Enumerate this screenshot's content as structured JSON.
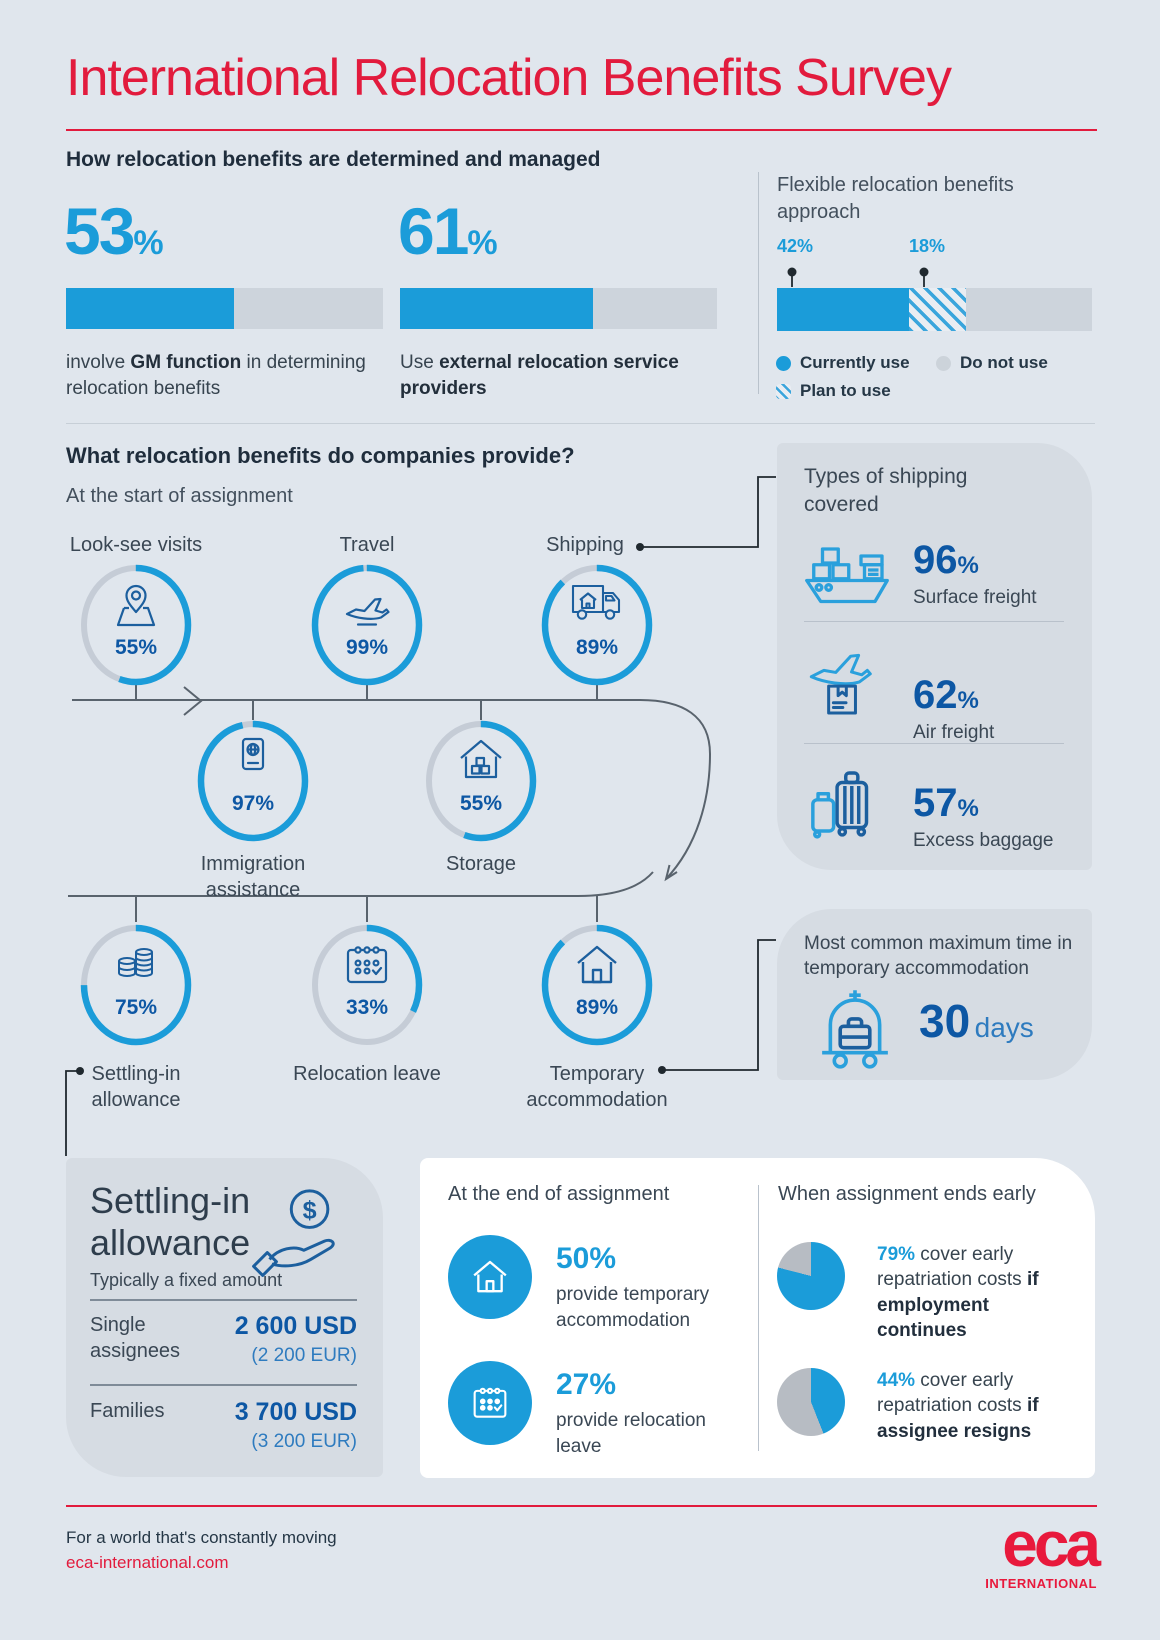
{
  "page": {
    "bg": "#e0e6ed",
    "accent_blue": "#1b9cd9",
    "navy": "#0d57a4",
    "red": "#e21b3d",
    "pie_gray": "#b7bcc3"
  },
  "header": {
    "title": "International Relocation Benefits Survey"
  },
  "section1": {
    "heading": "How relocation benefits are determined and managed",
    "stats": [
      {
        "value": "53",
        "unit": "%",
        "pct": 53,
        "caption_pre": "involve ",
        "caption_bold": "GM function",
        "caption_post": " in determining relocation benefits"
      },
      {
        "value": "61",
        "unit": "%",
        "pct": 61,
        "caption_pre": "Use ",
        "caption_bold": "external relocation service providers",
        "caption_post": ""
      }
    ],
    "flexible": {
      "heading": "Flexible relocation benefits approach",
      "currently_pct": 42,
      "plan_pct": 18,
      "label_currently": "42%",
      "label_plan": "18%",
      "legend_currently": "Currently use",
      "legend_donot": "Do not use",
      "legend_plan": "Plan to use"
    }
  },
  "section2": {
    "heading": "What relocation benefits do companies provide?",
    "subheading": "At the start of assignment",
    "row1": [
      {
        "label": "Look-see visits",
        "pct": 55,
        "pct_label": "55%",
        "icon": "map-pin"
      },
      {
        "label": "Travel",
        "pct": 99,
        "pct_label": "99%",
        "icon": "plane-takeoff"
      },
      {
        "label": "Shipping",
        "pct": 89,
        "pct_label": "89%",
        "icon": "moving-truck"
      }
    ],
    "row2": [
      {
        "label": "Immigration assistance",
        "pct": 97,
        "pct_label": "97%",
        "icon": "passport"
      },
      {
        "label": "Storage",
        "pct": 55,
        "pct_label": "55%",
        "icon": "storage-house"
      }
    ],
    "row3": [
      {
        "label": "Settling-in allowance",
        "pct": 75,
        "pct_label": "75%",
        "icon": "coins"
      },
      {
        "label": "Relocation leave",
        "pct": 33,
        "pct_label": "33%",
        "icon": "calendar"
      },
      {
        "label": "Temporary accommodation",
        "pct": 89,
        "pct_label": "89%",
        "icon": "house"
      }
    ]
  },
  "shipping_panel": {
    "heading": "Types of shipping covered",
    "items": [
      {
        "value": "96",
        "unit": "%",
        "pct": 96,
        "label": "Surface freight",
        "icon": "cargo-ship"
      },
      {
        "value": "62",
        "unit": "%",
        "pct": 62,
        "label": "Air freight",
        "icon": "air-freight"
      },
      {
        "value": "57",
        "unit": "%",
        "pct": 57,
        "label": "Excess baggage",
        "icon": "luggage"
      }
    ]
  },
  "temp_panel": {
    "heading": "Most common maximum time in temporary accommodation",
    "value": "30",
    "unit": "days"
  },
  "settling_panel": {
    "title": "Settling-in allowance",
    "subtitle": "Typically a fixed amount",
    "rows": [
      {
        "label": "Single assignees",
        "usd": "2 600 USD",
        "eur": "(2 200 EUR)"
      },
      {
        "label": "Families",
        "usd": "3 700 USD",
        "eur": "(3 200 EUR)"
      }
    ]
  },
  "end_panel": {
    "heading": "At the end of assignment",
    "items": [
      {
        "value": "50%",
        "pct": 50,
        "text": "provide temporary accommodation",
        "icon": "house"
      },
      {
        "value": "27%",
        "pct": 27,
        "text": "provide relocation leave",
        "icon": "calendar"
      }
    ]
  },
  "early_panel": {
    "heading": "When assignment ends early",
    "items": [
      {
        "value": "79%",
        "pct": 79,
        "pre": " cover early repatriation costs ",
        "bold": "if employment continues"
      },
      {
        "value": "44%",
        "pct": 44,
        "pre": " cover early repatriation costs ",
        "bold": "if assignee resigns"
      }
    ]
  },
  "footer": {
    "tagline": "For a world that's constantly moving",
    "url": "eca-international.com",
    "logo": "eca",
    "logo_sub": "INTERNATIONAL"
  },
  "chart_data": [
    {
      "type": "bar",
      "title": "How relocation benefits are determined and managed",
      "categories": [
        "involve GM function in determining relocation benefits",
        "Use external relocation service providers"
      ],
      "values": [
        53,
        61
      ],
      "unit": "%",
      "xlim": [
        0,
        100
      ]
    },
    {
      "type": "bar",
      "title": "Flexible relocation benefits approach",
      "categories": [
        "Currently use",
        "Plan to use",
        "Do not use"
      ],
      "values": [
        42,
        18,
        40
      ],
      "unit": "%",
      "note": "stacked single bar, plan-to-use hatched"
    },
    {
      "type": "bar",
      "title": "Relocation benefits provided at the start of assignment",
      "categories": [
        "Look-see visits",
        "Travel",
        "Shipping",
        "Immigration assistance",
        "Storage",
        "Settling-in allowance",
        "Relocation leave",
        "Temporary accommodation"
      ],
      "values": [
        55,
        99,
        89,
        97,
        55,
        75,
        33,
        89
      ],
      "unit": "%",
      "note": "shown as progress rings on a timeline"
    },
    {
      "type": "bar",
      "title": "Types of shipping covered",
      "categories": [
        "Surface freight",
        "Air freight",
        "Excess baggage"
      ],
      "values": [
        96,
        62,
        57
      ],
      "unit": "%"
    },
    {
      "type": "other",
      "title": "Most common maximum time in temporary accommodation",
      "value": 30,
      "unit": "days"
    },
    {
      "type": "table",
      "title": "Settling-in allowance (typically a fixed amount)",
      "categories": [
        "Single assignees",
        "Families"
      ],
      "values_usd": [
        2600,
        3700
      ],
      "values_eur": [
        2200,
        3200
      ]
    },
    {
      "type": "bar",
      "title": "At the end of assignment",
      "categories": [
        "provide temporary accommodation",
        "provide relocation leave"
      ],
      "values": [
        50,
        27
      ],
      "unit": "%"
    },
    {
      "type": "pie",
      "title": "Cover early repatriation costs if employment continues",
      "categories": [
        "cover",
        "do not cover"
      ],
      "values": [
        79,
        21
      ]
    },
    {
      "type": "pie",
      "title": "Cover early repatriation costs if assignee resigns",
      "categories": [
        "cover",
        "do not cover"
      ],
      "values": [
        44,
        56
      ]
    }
  ]
}
